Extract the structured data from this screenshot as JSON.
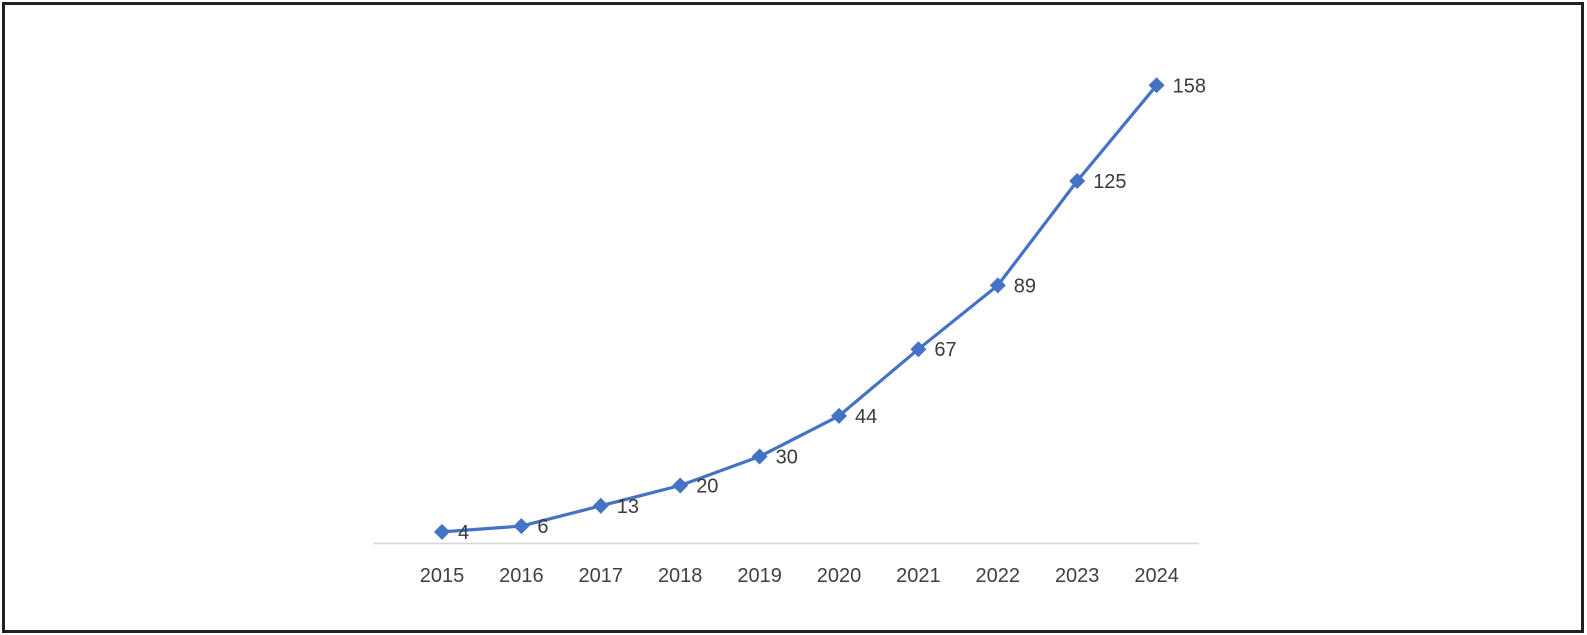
{
  "frame": {
    "border_color": "#212121",
    "background_color": "#ffffff"
  },
  "chart_data": {
    "type": "line",
    "title": "",
    "xlabel": "",
    "ylabel": "",
    "categories": [
      "2015",
      "2016",
      "2017",
      "2018",
      "2019",
      "2020",
      "2021",
      "2022",
      "2023",
      "2024"
    ],
    "values": [
      4,
      6,
      13,
      20,
      30,
      44,
      67,
      89,
      125,
      158
    ],
    "data_labels": [
      "4",
      "6",
      "13",
      "20",
      "30",
      "44",
      "67",
      "89",
      "125",
      "158"
    ],
    "ylim": [
      0,
      170
    ],
    "grid": false,
    "legend": "none",
    "marker_shape": "diamond",
    "line_color": "#4472C4",
    "marker_color": "#4472C4",
    "data_label_color": "#3b3b3b",
    "tick_label_color": "#3f3f3f",
    "axis_line_color": "#d6d6d6"
  }
}
